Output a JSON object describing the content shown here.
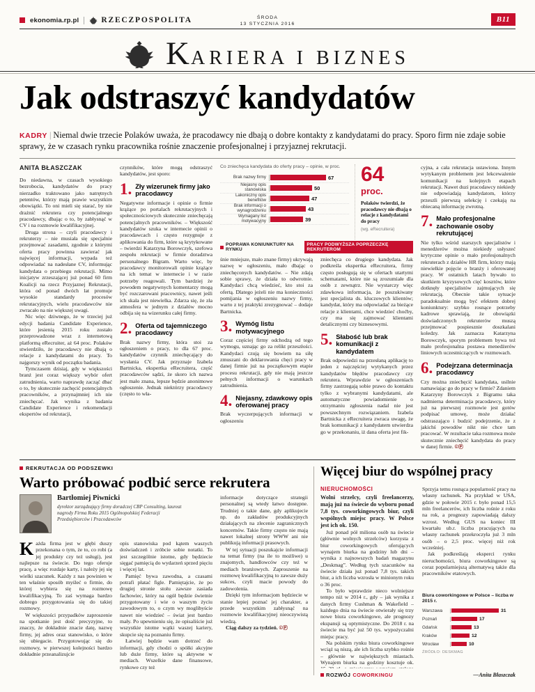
{
  "header": {
    "site": "ekonomia.rp.pl",
    "brand": "RZECZPOSPOLITA",
    "weekday": "ŚRODA",
    "date": "13 STYCZNIA 2016",
    "page_no": "B11"
  },
  "masthead": {
    "initial": "K",
    "rest": "ARIERA I BIZNES"
  },
  "main": {
    "kicker": "KADRY",
    "kicker_sep": "|",
    "headline": "Jak odstraszyć kandydatów",
    "deck": "Niemal dwie trzecie Polaków uważa, że pracodawcy nie dbają o dobre kontakty z kandydatami do pracy. Sporo firm nie zdaje sobie sprawy, że w czasach rynku pracownika rośnie znaczenie profesjonalnej i przyjaznej rekrutacji.",
    "byline": "ANITA BŁASZCZAK",
    "col1": [
      "Do niedawna, w czasach wysokiego bezrobocia, kandydatów do pracy nierzadko traktowano jako natrętnych petentów, którzy mają prawie wszystkim obowiązki. To oni mieli się starać, by nie drażnić rekrutera czy potencjalnego pracodawcy, dbając o to, by zabłysnąć w CV i na rozmowie kwalifikacyjnej.",
      "Druga strona – czyli pracodawcy i rekruterzy – nie musiała się specjalnie przejmować zasadami, zgodnie z którymi oferta pracy powinna zawierać jak najwięcej informacji, wypada też odpowiadać na nadesłane CV, informując kandydata o przebiegu rekrutacji. Mimo inicjatyw zrzeszającej już ponad 60 firm Koalicji na rzecz Przyjaznej Rekrutacji, która od ponad dwóch lat promuje wysokie standardy procesów rekrutacyjnych, wielu pracodawców nie zwracało na nie większej uwagi.",
      "Nic więc dziwnego, że w trzeciej już edycji badania Candidate Experience, które jesienią 2015 roku zostało przeprowadzone wraz z internetową platformą eRecruiter, aż 64 proc. Polaków stwierdziło, że pracodawcy nie dbają o relacje z kandydatami do pracy. To najgorszy wynik od początku badania.",
      "Tymczasem dzisiaj, gdy w większości branż jest coraz większy wybór ofert zatrudnienia, warto naprawdę zacząć dbać o to, by skutecznie zachęcić potencjalnych pracowników, a przynajmniej ich nie zniechęcać. Jak wynika z badania Candidate Experience i rekomendacji ekspertów od rekrutacji,"
    ],
    "col2_intro": "czynników, które mogą odstraszyć kandydatów, jest sporo:",
    "items": [
      {
        "num": "1.",
        "title": "Zły wizerunek firmy jako pracodawcy",
        "body": "Negatywne informacje i opinie o firmie krążące po portalach rekrutacyjnych i społecznościowych skutecznie zniechęcają potencjalnych pracowników. – Większość kandydatów szuka w internecie opinii o pracodawcach i często rezygnuje z aplikowania do firm, które są krytykowane – twierdzi Katarzyna Borowczyk, szefowa zespołu rekrutacji w firmie doradztwa personalnego Bigram. Warto więc, by pracodawcy monitorowali opinie krążące na ich temat w internecie i w razie potrzeby reagowali. Tym bardziej że powodem negatywnych komentarzy mogą być rozczarowani pracownicy, nawet jeśli ich skala jest niewielka. Zdarza się, że zła atmosfera w jednym z działów mocno odbija się na wizerunku całej firmy."
      },
      {
        "num": "2.",
        "title": "Oferta od tajemniczego pracodawcy",
        "body": "Brak nazwy firmy, która stoi za ogłoszeniem o pracy, to dla 67 proc. kandydatów czynnik zniechęcający do wysłania CV. Jak przyznaje Izabela Bartnicka, ekspertka eRecruitera, część pracodawców sądzi, że skoro ich nazwa jest mało znana, lepsze będzie anonimowe ogłoszenie. Jednak niektórzy pracodawcy (często to wła-"
      },
      {
        "num": "3.",
        "title": "Wymóg listu motywacyjnego",
        "body": "Coraz częściej firmy odchodzą od tego wymogu, uznając go za relikt przeszłości. Kandydaci czują się bowiem na siłę zmuszani do deklarowania chęci pracy w danej firmie już na początkowym etapie procesu rekrutacji, gdy nie mają jeszcze pełnych informacji o warunkach zatrudnienia."
      },
      {
        "num": "4.",
        "title": "Niejasny, zdawkowy opis oferowanej pracy",
        "body": "Brak wyczerpujących informacji w ogłoszeniu"
      },
      {
        "num": "5.",
        "title": "Słabość lub brak komunikacji z kandydatem",
        "body": "Brak odpowiedzi na przesłaną aplikację to jeden z najczęściej wytykanych przez kandydatów błędów pracodawcy czy rekrutera. Wprawdzie w ogłoszeniach firmy zastrzegają sobie prawo do kontaktu tylko z wybranymi kandydatami, ale automatyczne powiadomienie o otrzymaniu zgłoszenia nadal nie jest powszechnym rozwiązaniem. Izabela Bartnicka z eRecruitera zwraca uwagę, że brak komunikacji z kandydatem utwierdza go w przekonaniu, iż dana oferta jest fik-"
      },
      {
        "num": "6.",
        "title": "Podejrzana determinacja pracodawcy",
        "body": "Czy można zniechęcić kandydata, usilnie namawiając go do pracy w firmie? Zdaniem Katarzyny Borowczyk z Bigramu taka nadmierna determinacja pracodawcy, który już na pierwszej rozmowie jest gotów podpisać umowę, może działać odstraszająco i budzić podejrzenie, że z jakichś powodów nikt nie chce tam pracować. W rezultacie taka rozmowa może skutecznie zniechęcić kandydata do pracy w danej firmie."
      },
      {
        "num": "7.",
        "title": "Mało profesjonalne zachowanie osoby rekrutującej",
        "body": "Nie tylko wśród starszych specjalistów i menedżerów można niekiedy usłyszeć krytyczne opinie o mało profesjonalnych rekruterach z działów HR firm, którzy mają niewielkie pojęcie o branży i oferowanej pracy. W ostatnich latach bywało to skutkiem kryzysowych cięć kosztów, które dotknęły specjalistów zajmujących się rekrutacją. Obecnie takie sytuacje paradoksalnie mogą być efektem dobrej koniunktury: szybko rosnące potrzeby kadrowe sprawiają, że obowiązki doświadczonych rekruterów muszą przejmować pospiesznie doszkalani koledzy. Jak zaznacza Katarzyna Borowczyk, sporym problemem bywa też mało profesjonalna postawa menedżerów liniowych uczestniczących w rozmowach."
      }
    ],
    "col3_lead": "śnie mniejsze, mało znane firmy) ukrywają nazwę w ogłoszeniu, mało dbając o zniechęconych kandydatów. – Nie zdają sobie sprawy, że działa to odwrotnie. Kandydaci chcą wiedzieć, kto stoi za ofertą. Dlatego jeżeli nie ma konieczności pomijania w ogłoszeniu nazwy firmy, warto z tej praktyki zrezygnować – dodaje Bartnicka.",
    "col4_lead": "zniechęca co drugiego kandydata. Jak podkreśla ekspertka eRecruitera, firmy często posługują się w ofertach utartymi schematami, które nie są zrozumiałe dla osób z zewnątrz. Nie wystarczy więc zdawkowa informacja, że poszukiwany jest specjalista ds. kluczowych klientów; kandydat, który ma odpowiadać za bieżące relacje z klientami, chce wiedzieć choćby, czy ma się zajmować klientami detalicznymi czy biznesowymi.",
    "col5_lead": "cyjna, a cała rekrutacja ustawiona. Innym wytykanym problemem jest lekceważenie komunikacji na kolejnych etapach rekrutacji. Nawet duzi pracodawcy niekiedy nie odpowiadają kandydatom, którzy przeszli pierwszą selekcję i czekają na obiecaną informację zwrotną.",
    "stat": {
      "value": "64",
      "unit": "proc.",
      "caption": "Polaków twierdzi, że pracodawcy nie dbają o relacje z kandydatami do pracy",
      "source": "(wg. eRecruitera)"
    },
    "banner": {
      "black": "POPRAWA KONIUNKTURY NA RYNKU",
      "red": "PRACY PODWYŻSZA POPRZECZKĘ REKRUTEROM"
    },
    "end_mark": "©Ⓟ"
  },
  "chart_data": [
    {
      "type": "bar",
      "orientation": "horizontal",
      "title": "Co zniechęca kandydata do oferty pracy – opinie, w proc.",
      "categories": [
        "Brak nazwy firmy",
        "Niejasny opis stanowiska",
        "Lakoniczny opis benefitów",
        "Brak informacji o wynagrodzeniu",
        "Wymagany list motywacyjny"
      ],
      "values": [
        67,
        50,
        47,
        43,
        39
      ],
      "xlim": [
        0,
        70
      ],
      "legend": "none",
      "source": "eRecruiter",
      "bar_color": "#c8102e"
    },
    {
      "type": "bar",
      "orientation": "horizontal",
      "title": "Biura coworkingowe w Polsce – liczba w 2015 r.",
      "categories": [
        "Warszawa",
        "Poznań",
        "Gdańsk",
        "Kraków",
        "Wrocław"
      ],
      "values": [
        31,
        17,
        13,
        12,
        10
      ],
      "xlim": [
        0,
        31
      ],
      "legend": "none",
      "source": "Deskmag",
      "bar_color": "#c8102e"
    }
  ],
  "left_article": {
    "kicker": "REKRUTACJA OD PODSZEWKI",
    "headline": "Warto próbować podbić serce rekrutera",
    "author": {
      "name": "Bartłomiej Piwnicki",
      "bio": "dyrektor zarządzający firmy doradczej CBP Consulting, laureat nagrody Firma Roku 2015 Ogólnopolskiej Federacji Przedsiębiorców i Pracodawców"
    },
    "dropcap": "K",
    "colA": [
      "ażda firma jest w głębi duszy przekonana o tym, że to, co robi (a jej produkty czy też usługi), jest najlepsze na świecie. Do tego oferuje pracę, a więc rozdaje karty, i należy jej się wielki szacunek. Każdy z nas powinien w ten właśnie sposób myśleć o firmie, do której wybiera się na rozmowę kwalifikacyjną. To zaś wymaga bardzo dobrego przygotowania się do takiej rozmowy.",
      "W większości przypadków zaproszenie na spotkanie jest dość precyzyjne, to znaczy, że dokładnie znacie datę, nazwę firmy, jej adres oraz stanowisko, o które się ubiegacie. Przygotowując się do rozmowy, w pierwszej kolejności bardzo dokładnie przeanalizujcie"
    ],
    "colB": [
      "opis stanowiska pod kątem waszych doświadczeń i zróbcie sobie notatki. To jest szczególnie istotne, gdy będziecie sięgać pamięcią do wydarzeń sprzed pięciu i więcej lat.",
      "Pamięć bywa zawodna, a czasami potrafi płatać figle. Pamiętajcie, że po drugiej stronie stołu zawsze zasiada fachowiec, który na ogół będzie świetnie przygotowany i wie o waszym życiu zawodowym to, o czym wy moglibyście nawet nie wiedzieć – świat jest bardzo mały. Po upewnieniu się, że opisaliście już wszystkie istotne wątki waszej kariery, skupcie się na poznaniu firmy.",
      "Łatwiej będzie wam dotrzeć do informacji, gdy chodzi o spółki akcyjne lub duże firmy, które są aktywne w mediach. Wszelkie dane finansowe, rynkowe czy też"
    ],
    "colC": [
      "informacje dotyczące strategii personalnej są wtedy łatwo dostępne. Trudniej o takie dane, gdy aplikujecie np. do zakładów produkcyjnych działających na zlecenie zagranicznych koncernów. Takie firmy często nie mają nawet lokalnej strony WWW ani nie publikują informacji prasowych.",
      "W tej sytuacji poszukajcie informacji na temat firmy (na ile to możliwe) u znajomych, handlowców czy też w mediach branżowych. Zaproszenie na rozmowę kwalifikacyjną to zawsze duży sukces, czyli macie powody do zadowolenia.",
      "Dzięki tym informacjom będziecie w stanie lepiej poznać jej charakter, a przede wszystkim zabłysnąć na rozmowie kwalifikacyjnej nieoczywistą wiedzą."
    ],
    "closing": "Ciąg dalszy za tydzień.",
    "end_mark": "©Ⓟ"
  },
  "right_article": {
    "headline": "Więcej biur do wspólnej pracy",
    "label": "NIERUCHOMOŚCI",
    "lead": "Wolni strzelcy, czyli freelancerzy, mają już na świecie do wyboru ponad 7,8 tys. coworkingowych biur, czyli wspólnych miejsc pracy. W Polsce jest ich ok. 150.",
    "colL": [
      "Już ponad pół miliona osób na świecie (głównie wolnych strzelców) korzysta z biur coworkingowych oferujących wynajem biurka na godziny lub dni – wynika z najnowszych badań magazynu „Deskmag”. Według tych szacunków na świecie działa już ponad 7,8 tys. takich biur, a ich liczba wzrosła w minionym roku o 36 proc.",
      "To było wprawdzie nieco wolniejsze tempo niż w 2014 r., gdy – jak wynika z danych firmy Cushman & Wakefield – każdego dnia na świecie otwierały się trzy nowe biura coworkingowe, ale prognozy ekspansji są optymistyczne. Do 2018 r. na świecie ma być już 50 tys. wypożyczalni miejsc pracy.",
      "Na polskim rynku biura coworkingowe wciąż są niszą, ale ich liczba szybko rośnie – głównie w największych miastach. Wynajem biurka na godziny kosztuje ok. 15–20 zł, a miesięczny wynajem stałego miejsca to wydatek ok. 450 zł."
    ],
    "colR": [
      "Sprzyja temu rosnąca popularność pracy na własny rachunek. Na przykład w USA, gdzie w połowie 2015 r. było ponad 15,5 mln freelancerów, ich liczba rośnie z roku na rok, a prognozy zapowiadają dalszy wzrost. Według GUS na koniec III kwartału ub.r. liczba pracujących na własny rachunek przekroczyła już 3 mln osób – o 2,5 proc. więcej niż rok wcześniej.",
      "Jak podkreślają eksperci rynku nieruchomości, biura coworkingowe są coraz popularniejszą alternatywą także dla pracowników etatowych."
    ],
    "chart_source": "ŹRÓDŁO: DESKMAG",
    "footer_black": "ROZWÓJ",
    "footer_red": "COWORKINGU",
    "attribution": "—Anita Błaszczak"
  }
}
